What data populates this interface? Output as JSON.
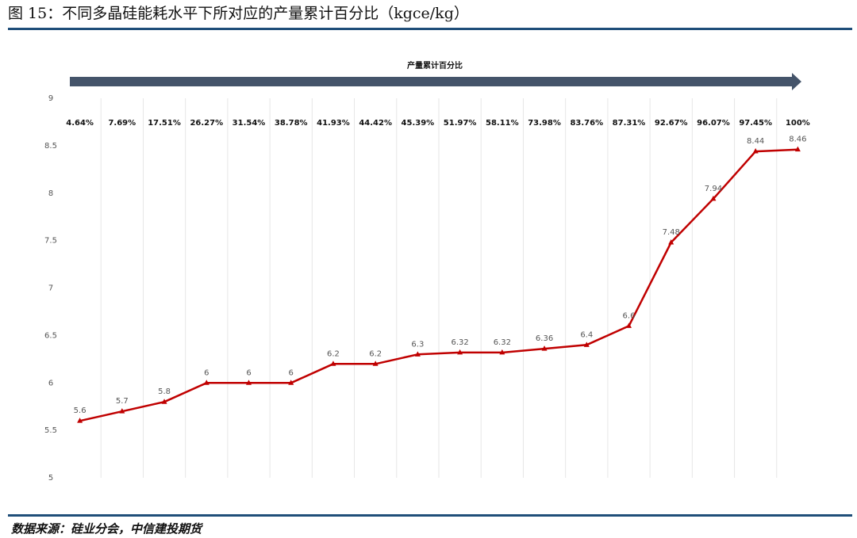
{
  "chart_data": {
    "type": "line",
    "title": "图 15：不同多晶硅能耗水平下所对应的产量累计百分比（kgce/kg）",
    "axis_arrow_label": "产量累计百分比",
    "source": "数据来源：硅业分会，中信建投期货",
    "categories": [
      "4.64%",
      "7.69%",
      "17.51%",
      "26.27%",
      "31.54%",
      "38.78%",
      "41.93%",
      "44.42%",
      "45.39%",
      "51.97%",
      "58.11%",
      "73.98%",
      "83.76%",
      "87.31%",
      "92.67%",
      "96.07%",
      "97.45%",
      "100%"
    ],
    "values": [
      5.6,
      5.7,
      5.8,
      6,
      6,
      6,
      6.2,
      6.2,
      6.3,
      6.32,
      6.32,
      6.36,
      6.4,
      6.6,
      7.48,
      7.94,
      8.44,
      8.46
    ],
    "color": "#c00000",
    "ylim": [
      5,
      9
    ],
    "yticks": [
      5,
      5.5,
      6,
      6.5,
      7,
      7.5,
      8,
      8.5,
      9
    ]
  }
}
